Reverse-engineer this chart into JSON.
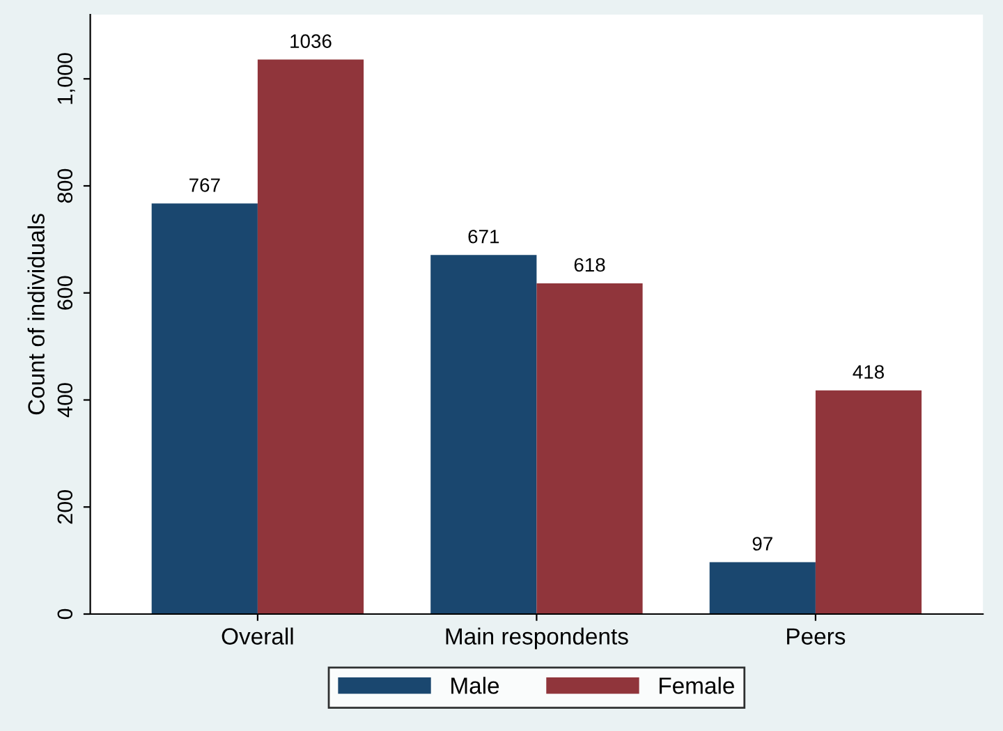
{
  "chart_data": {
    "type": "bar",
    "ylabel": "Count of individuals",
    "categories": [
      "Overall",
      "Main respondents",
      "Peers"
    ],
    "series": [
      {
        "name": "Male",
        "color": "#1a476f",
        "values": [
          767,
          671,
          97
        ]
      },
      {
        "name": "Female",
        "color": "#90353b",
        "values": [
          1036,
          618,
          418
        ]
      }
    ],
    "ylim": [
      0,
      1120
    ],
    "yticks": [
      0,
      200,
      400,
      600,
      800,
      {
        "value": 1000,
        "label": "1,000"
      }
    ],
    "grid": false,
    "legend": "bottom",
    "data_labels": true
  }
}
